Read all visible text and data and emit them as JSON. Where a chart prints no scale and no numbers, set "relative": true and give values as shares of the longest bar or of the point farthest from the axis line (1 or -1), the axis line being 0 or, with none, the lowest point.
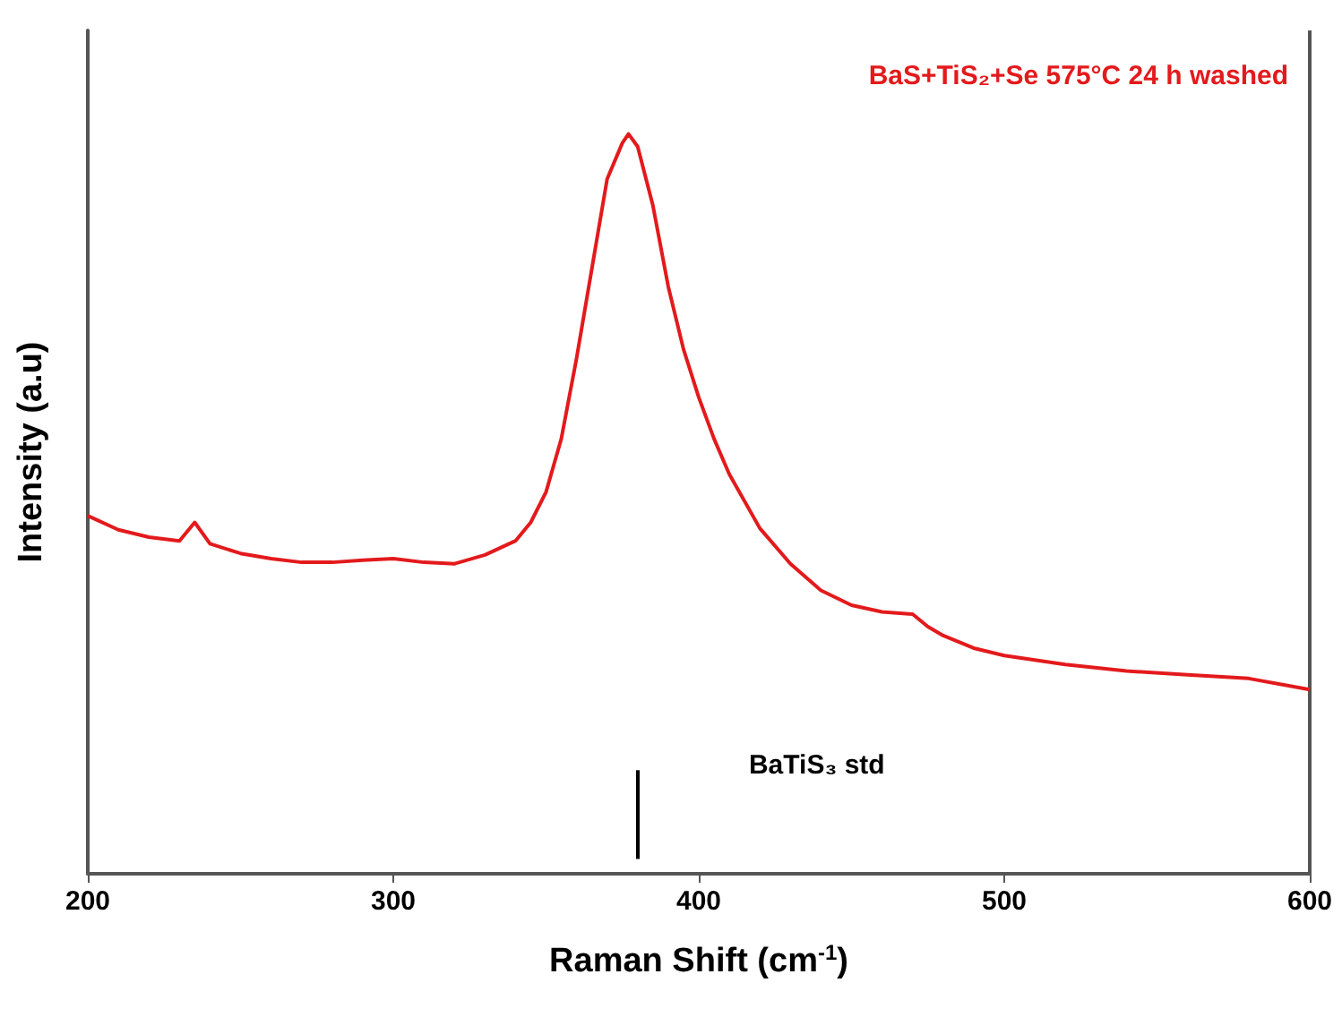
{
  "chart_data": {
    "type": "line",
    "relative": true,
    "xlabel": "Raman Shift (cm$^{-1}$)",
    "ylabel": "Intensity (a.u)",
    "xlim": [
      200,
      600
    ],
    "xticks": [
      200,
      300,
      400,
      500,
      600
    ],
    "grid": false,
    "marker": "none",
    "line_style": "solid",
    "annotations": [
      "BaS+TiS₂+Se 575°C 24 h washed"
    ],
    "ref_lines": [
      {
        "axis": "x",
        "value": 380,
        "label": "BaTiS₃ std",
        "color": "#000000"
      }
    ],
    "series": [
      {
        "color": "#e31a1c",
        "x": [
          200,
          210,
          220,
          230,
          235,
          240,
          250,
          260,
          270,
          280,
          290,
          300,
          310,
          320,
          330,
          340,
          345,
          350,
          355,
          360,
          365,
          370,
          375,
          377,
          380,
          385,
          390,
          395,
          400,
          405,
          410,
          420,
          430,
          440,
          450,
          460,
          470,
          475,
          480,
          490,
          500,
          520,
          540,
          560,
          580,
          600
        ],
        "values": [
          0.484,
          0.465,
          0.455,
          0.45,
          0.475,
          0.446,
          0.433,
          0.426,
          0.421,
          0.421,
          0.424,
          0.426,
          0.421,
          0.419,
          0.431,
          0.45,
          0.475,
          0.516,
          0.588,
          0.697,
          0.818,
          0.939,
          0.988,
          1.0,
          0.983,
          0.903,
          0.794,
          0.709,
          0.644,
          0.588,
          0.54,
          0.467,
          0.419,
          0.383,
          0.363,
          0.354,
          0.351,
          0.334,
          0.322,
          0.305,
          0.295,
          0.283,
          0.274,
          0.269,
          0.264,
          0.249
        ]
      }
    ]
  }
}
